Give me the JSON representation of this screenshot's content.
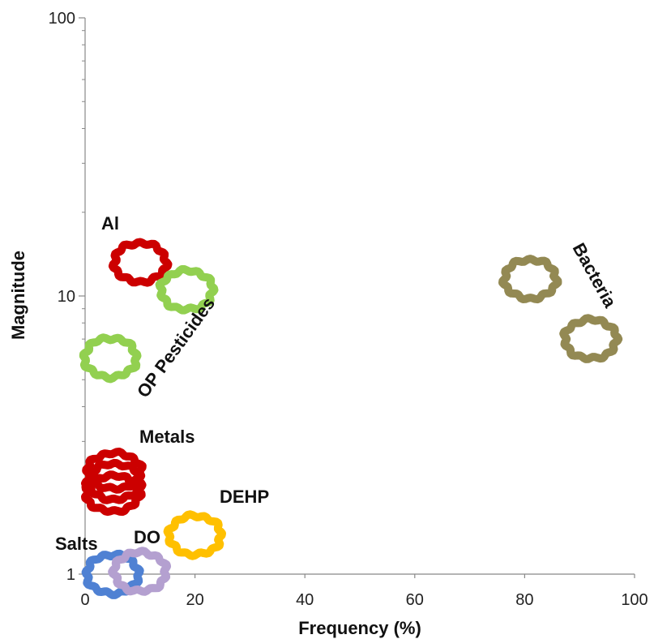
{
  "chart_data": {
    "type": "scatter",
    "title": "",
    "xlabel": "Frequency (%)",
    "ylabel": "Magnitude",
    "xlim": [
      0,
      100
    ],
    "ylim": [
      1,
      100
    ],
    "yscale": "log",
    "grid": false,
    "x_ticks": [
      "0",
      "20",
      "40",
      "60",
      "80",
      "100"
    ],
    "y_ticks": [
      "1",
      "10",
      "100"
    ],
    "series": [
      {
        "name": "Al",
        "color": "#cc0000",
        "points": [
          {
            "x": 10,
            "y": 13.2
          }
        ]
      },
      {
        "name": "OP Pesticides",
        "color": "#92d050",
        "points": [
          {
            "x": 18.5,
            "y": 10.5
          },
          {
            "x": 4.6,
            "y": 6.0
          }
        ]
      },
      {
        "name": "Metals",
        "color": "#cc0000",
        "points": [
          {
            "x": 5.3,
            "y": 2.35
          },
          {
            "x": 5.3,
            "y": 2.15
          },
          {
            "x": 5.0,
            "y": 1.95
          }
        ]
      },
      {
        "name": "DEHP",
        "color": "#ffc000",
        "points": [
          {
            "x": 20,
            "y": 1.38
          }
        ]
      },
      {
        "name": "Salts",
        "color": "#4f81d3",
        "points": [
          {
            "x": 5.0,
            "y": 1.0
          }
        ]
      },
      {
        "name": "DO",
        "color": "#b4a0d0",
        "points": [
          {
            "x": 10,
            "y": 1.02
          }
        ]
      },
      {
        "name": "Bacteria",
        "color": "#938953",
        "points": [
          {
            "x": 81,
            "y": 11.5
          },
          {
            "x": 92,
            "y": 7.0
          }
        ]
      }
    ]
  }
}
